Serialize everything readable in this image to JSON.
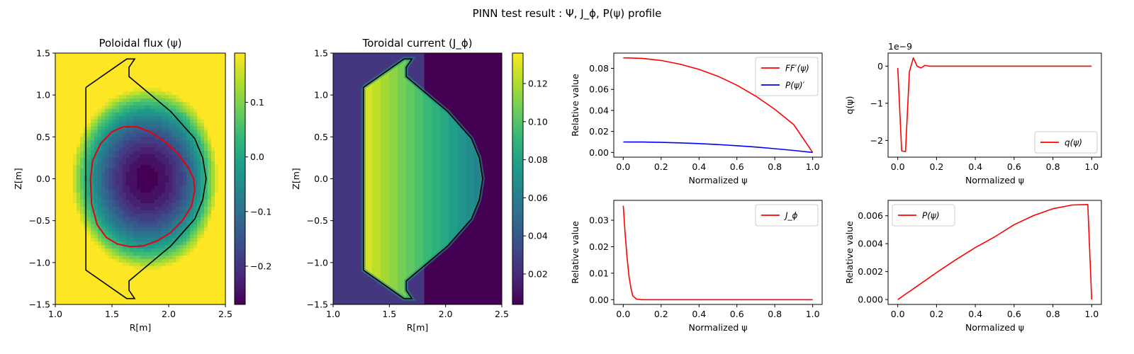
{
  "figure": {
    "suptitle": "PINN test result : Ψ, J_ϕ, P(ψ) profile"
  },
  "colors": {
    "viridis": [
      "#440154",
      "#482878",
      "#3e4989",
      "#31688e",
      "#26828e",
      "#1f9e89",
      "#35b779",
      "#6ece58",
      "#b5de2b",
      "#fde725"
    ],
    "boundary": "#000000",
    "lcfs": "#e8000b",
    "red": "#ff0000",
    "blue": "#0000ff"
  },
  "chart_data": [
    {
      "type": "heatmap",
      "id": "flux",
      "title": "Poloidal flux (ψ)",
      "xlabel": "R[m]",
      "ylabel": "Z[m]",
      "xlim": [
        1.0,
        2.5
      ],
      "ylim": [
        -1.5,
        1.5
      ],
      "xticks": [
        "1.0",
        "1.5",
        "2.0",
        "2.5"
      ],
      "yticks": [
        "−1.5",
        "−1.0",
        "−0.5",
        "0.0",
        "0.5",
        "1.0",
        "1.5"
      ],
      "colorbar": {
        "min": -0.27,
        "max": 0.19,
        "ticks": [
          "−0.2",
          "−0.1",
          "0.0",
          "0.1"
        ],
        "tick_values": [
          -0.2,
          -0.1,
          0.0,
          0.1
        ]
      },
      "field": {
        "axis_R": 1.81,
        "axis_Z": 0.0,
        "psi_axis": -0.27,
        "psi_max": 0.19
      },
      "boundary_R": [
        1.27,
        1.63,
        1.7,
        1.65,
        1.65,
        2.02,
        2.23,
        2.3,
        2.33,
        2.3,
        2.23,
        2.02,
        1.65,
        1.65,
        1.7,
        1.63,
        1.27,
        1.27
      ],
      "boundary_Z": [
        1.09,
        1.43,
        1.43,
        1.33,
        1.22,
        0.8,
        0.48,
        0.25,
        0.0,
        -0.25,
        -0.48,
        -0.8,
        -1.22,
        -1.33,
        -1.43,
        -1.43,
        -1.09,
        1.09
      ],
      "lcfs_R": [
        1.31,
        1.33,
        1.4,
        1.5,
        1.6,
        1.72,
        1.85,
        1.97,
        2.08,
        2.17,
        2.22,
        2.23,
        2.2,
        2.12,
        2.02,
        1.9,
        1.78,
        1.66,
        1.55,
        1.45,
        1.37,
        1.32,
        1.31
      ],
      "lcfs_Z": [
        0.0,
        0.22,
        0.42,
        0.56,
        0.62,
        0.62,
        0.55,
        0.44,
        0.3,
        0.14,
        0.0,
        -0.14,
        -0.33,
        -0.5,
        -0.64,
        -0.74,
        -0.8,
        -0.81,
        -0.78,
        -0.7,
        -0.55,
        -0.3,
        0.0
      ]
    },
    {
      "type": "heatmap",
      "id": "current",
      "title": "Toroidal current (J_ϕ)",
      "xlabel": "R[m]",
      "ylabel": "Z[m]",
      "xlim": [
        1.0,
        2.5
      ],
      "ylim": [
        -1.5,
        1.5
      ],
      "xticks": [
        "1.0",
        "1.5",
        "2.0",
        "2.5"
      ],
      "yticks": [
        "−1.5",
        "−1.0",
        "−0.5",
        "0.0",
        "0.5",
        "1.0",
        "1.5"
      ],
      "colorbar": {
        "min": 0.004,
        "max": 0.136,
        "ticks": [
          "0.02",
          "0.04",
          "0.06",
          "0.08",
          "0.10",
          "0.12"
        ],
        "tick_values": [
          0.02,
          0.04,
          0.06,
          0.08,
          0.1,
          0.12
        ]
      },
      "field": {
        "j_inner": 0.128,
        "j_outer": 0.063,
        "R_inner": 1.27,
        "R_outer": 2.33,
        "bg_left": 0.025,
        "bg_right": 0.004,
        "bg_split_R": 1.81
      }
    },
    {
      "type": "line",
      "id": "ffprime",
      "title": "",
      "xlabel": "Normalized ψ",
      "ylabel": "Relative value",
      "xlim": [
        -0.05,
        1.05
      ],
      "ylim": [
        -0.0045,
        0.0945
      ],
      "xticks": [
        "0.0",
        "0.2",
        "0.4",
        "0.6",
        "0.8",
        "1.0"
      ],
      "yticks": [
        "0.00",
        "0.02",
        "0.04",
        "0.06",
        "0.08"
      ],
      "ytick_values": [
        0.0,
        0.02,
        0.04,
        0.06,
        0.08
      ],
      "legend": "top-right",
      "series": [
        {
          "name": "FF′(ψ)",
          "color": "#ff0000",
          "x": [
            0,
            0.1,
            0.2,
            0.3,
            0.4,
            0.5,
            0.6,
            0.7,
            0.8,
            0.9,
            1.0
          ],
          "y": [
            0.09,
            0.0895,
            0.0875,
            0.084,
            0.079,
            0.0725,
            0.064,
            0.0535,
            0.041,
            0.0265,
            0.0
          ]
        },
        {
          "name": "P(ψ)′",
          "color": "#0000ff",
          "x": [
            0,
            0.1,
            0.2,
            0.3,
            0.4,
            0.5,
            0.6,
            0.7,
            0.8,
            0.9,
            1.0
          ],
          "y": [
            0.01,
            0.0099,
            0.0096,
            0.0091,
            0.0084,
            0.0075,
            0.0064,
            0.0051,
            0.0036,
            0.0019,
            0.0
          ]
        }
      ]
    },
    {
      "type": "line",
      "id": "q",
      "title": "",
      "xlabel": "Normalized ψ",
      "ylabel": "q(ψ)",
      "offset_text": "1e−9",
      "xlim": [
        -0.05,
        1.05
      ],
      "ylim": [
        -2.45,
        0.35
      ],
      "xticks": [
        "0.0",
        "0.2",
        "0.4",
        "0.6",
        "0.8",
        "1.0"
      ],
      "yticks": [
        "−2",
        "−1",
        "0"
      ],
      "ytick_values": [
        -2,
        -1,
        0
      ],
      "legend": "bottom-right",
      "series": [
        {
          "name": "q(ψ)",
          "color": "#ff0000",
          "x": [
            0.0,
            0.02,
            0.04,
            0.06,
            0.08,
            0.1,
            0.12,
            0.14,
            0.16,
            0.2,
            0.3,
            0.5,
            0.7,
            1.0
          ],
          "y": [
            -0.05,
            -2.28,
            -2.3,
            -0.15,
            0.22,
            0.0,
            -0.05,
            0.02,
            0.0,
            0.0,
            0.0,
            0.0,
            0.0,
            0.0
          ]
        }
      ]
    },
    {
      "type": "line",
      "id": "jphi",
      "title": "",
      "xlabel": "Normalized ψ",
      "ylabel": "Relative value",
      "xlim": [
        -0.05,
        1.05
      ],
      "ylim": [
        -0.0018,
        0.0375
      ],
      "xticks": [
        "0.0",
        "0.2",
        "0.4",
        "0.6",
        "0.8",
        "1.0"
      ],
      "yticks": [
        "0.00",
        "0.01",
        "0.02",
        "0.03"
      ],
      "ytick_values": [
        0.0,
        0.01,
        0.02,
        0.03
      ],
      "legend": "top-right",
      "series": [
        {
          "name": "J_ϕ",
          "color": "#ff0000",
          "x": [
            0.0,
            0.01,
            0.02,
            0.03,
            0.04,
            0.05,
            0.07,
            0.1,
            0.2,
            0.4,
            0.6,
            0.8,
            1.0
          ],
          "y": [
            0.0355,
            0.025,
            0.016,
            0.009,
            0.0045,
            0.0015,
            0.0002,
            0.0,
            0.0,
            0.0,
            0.0,
            0.0,
            0.0
          ]
        }
      ]
    },
    {
      "type": "line",
      "id": "pressure",
      "title": "",
      "xlabel": "Normalized ψ",
      "ylabel": "Relative value",
      "xlim": [
        -0.05,
        1.05
      ],
      "ylim": [
        -0.00035,
        0.0071
      ],
      "xticks": [
        "0.0",
        "0.2",
        "0.4",
        "0.6",
        "0.8",
        "1.0"
      ],
      "yticks": [
        "0.000",
        "0.002",
        "0.004",
        "0.006"
      ],
      "ytick_values": [
        0.0,
        0.002,
        0.004,
        0.006
      ],
      "legend": "top-left",
      "series": [
        {
          "name": "P(ψ)",
          "color": "#ff0000",
          "x": [
            0.0,
            0.1,
            0.2,
            0.3,
            0.4,
            0.5,
            0.6,
            0.7,
            0.8,
            0.9,
            0.98,
            1.0
          ],
          "y": [
            0.0,
            0.00096,
            0.00193,
            0.00286,
            0.00372,
            0.00449,
            0.00536,
            0.00601,
            0.0065,
            0.00677,
            0.0068,
            0.0
          ]
        }
      ]
    }
  ]
}
